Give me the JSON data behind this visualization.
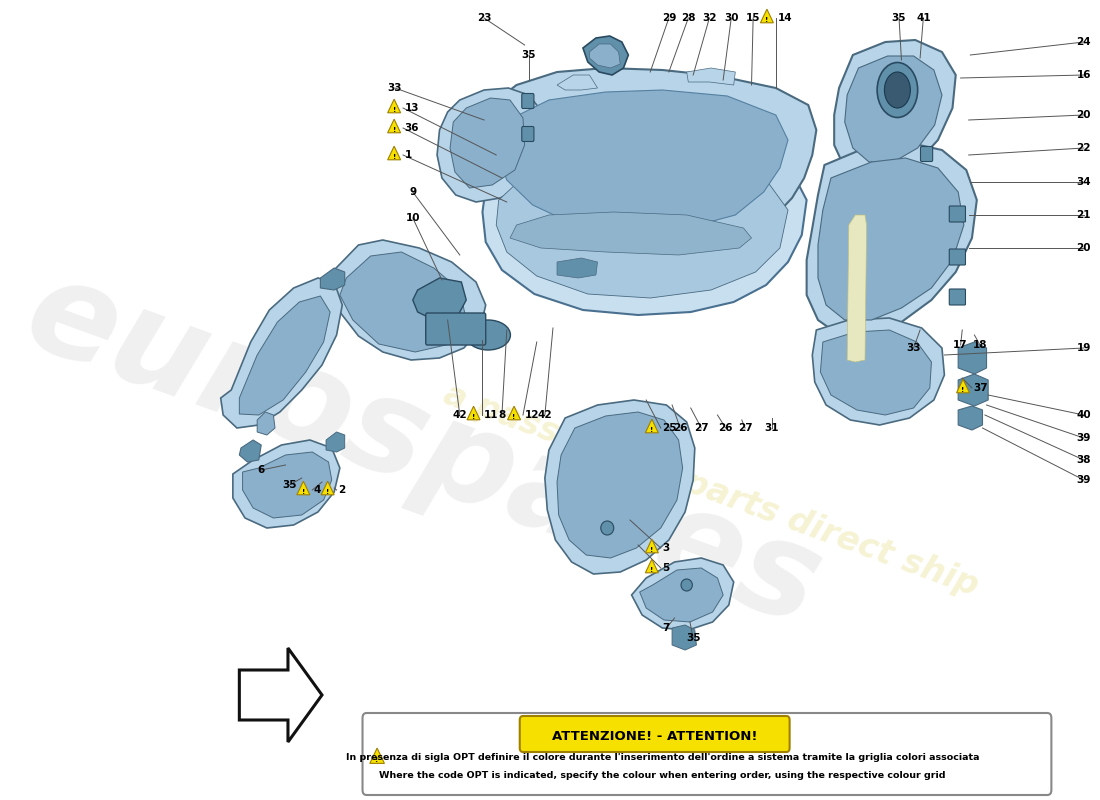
{
  "bg_color": "#ffffff",
  "watermark_text1": "eurospares",
  "watermark_text2": "a passion for parts direct ship",
  "attention_title": "ATTENZIONE! - ATTENTION!",
  "attention_line1": "In presenza di sigla OPT definire il colore durante l'inserimento dell'ordine a sistema tramite la griglia colori associata",
  "attention_line2": "Where the code OPT is indicated, specify the colour when entering order, using the respective colour grid",
  "part_color_light": "#b8d4e8",
  "part_color_mid": "#8ab0cc",
  "part_color_dark": "#6090aa",
  "part_color_edge": "#3060808",
  "warn_color": "#f5e000",
  "warn_border": "#c8a000",
  "line_color": "#555555",
  "label_color": "#000000",
  "arrow_bg": "#ffffff",
  "arrow_border": "#111111"
}
